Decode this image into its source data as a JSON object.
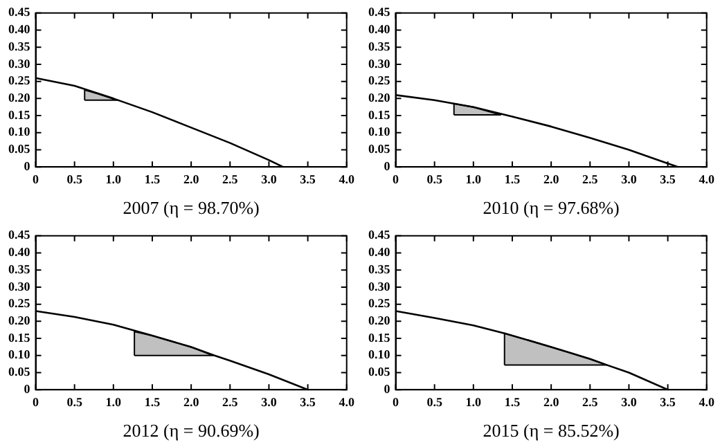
{
  "chart_data": [
    {
      "type": "line",
      "xlabel": "2007 (η = 98.70%)",
      "xlim": [
        0,
        4.0
      ],
      "ylim": [
        0,
        0.45
      ],
      "xticks": [
        0,
        0.5,
        {
          "value": 1,
          "label": "1.0"
        },
        1.5,
        {
          "value": 2,
          "label": "2.0"
        },
        2.5,
        {
          "value": 3,
          "label": "3.0"
        },
        3.5,
        {
          "value": 4,
          "label": "4.0"
        }
      ],
      "yticks": [
        0,
        0.05,
        {
          "value": 0.1,
          "label": "0.10"
        },
        0.15,
        {
          "value": 0.2,
          "label": "0.20"
        },
        0.25,
        {
          "value": 0.3,
          "label": "0.30"
        },
        0.35,
        {
          "value": 0.4,
          "label": "0.40"
        },
        0.45
      ],
      "grid": false,
      "legend": false,
      "series": [
        {
          "type": "line",
          "color": "#000000",
          "x": [
            0,
            0.5,
            1.0,
            1.5,
            2.0,
            2.5,
            3.0,
            3.18
          ],
          "values": [
            0.26,
            0.237,
            0.2,
            0.16,
            0.115,
            0.07,
            0.02,
            0
          ]
        },
        {
          "type": "area",
          "color": "#c0c0c0",
          "x": [
            0.63,
            0.63,
            0.8,
            1.05,
            0.63
          ],
          "values": [
            0.195,
            0.225,
            0.214,
            0.195,
            0.195
          ]
        }
      ]
    },
    {
      "type": "line",
      "xlabel": "2010 (η = 97.68%)",
      "xlim": [
        0,
        4.0
      ],
      "ylim": [
        0,
        0.45
      ],
      "xticks": [
        0,
        0.5,
        {
          "value": 1,
          "label": "1.0"
        },
        1.5,
        {
          "value": 2,
          "label": "2.0"
        },
        2.5,
        {
          "value": 3,
          "label": "3.0"
        },
        3.5,
        {
          "value": 4,
          "label": "4.0"
        }
      ],
      "yticks": [
        0,
        0.05,
        {
          "value": 0.1,
          "label": "0.10"
        },
        0.15,
        {
          "value": 0.2,
          "label": "0.20"
        },
        0.25,
        {
          "value": 0.3,
          "label": "0.30"
        },
        0.35,
        {
          "value": 0.4,
          "label": "0.40"
        },
        0.45
      ],
      "grid": false,
      "legend": false,
      "series": [
        {
          "type": "line",
          "color": "#000000",
          "x": [
            0,
            0.5,
            1.0,
            1.5,
            2.0,
            2.5,
            3.0,
            3.5,
            3.63
          ],
          "values": [
            0.21,
            0.195,
            0.175,
            0.147,
            0.118,
            0.085,
            0.05,
            0.01,
            0
          ]
        },
        {
          "type": "area",
          "color": "#c0c0c0",
          "x": [
            0.75,
            0.75,
            1.0,
            1.35,
            0.75
          ],
          "values": [
            0.152,
            0.185,
            0.175,
            0.152,
            0.152
          ]
        }
      ]
    },
    {
      "type": "line",
      "xlabel": "2012 (η = 90.69%)",
      "xlim": [
        0,
        4.0
      ],
      "ylim": [
        0,
        0.45
      ],
      "xticks": [
        0,
        0.5,
        {
          "value": 1,
          "label": "1.0"
        },
        1.5,
        {
          "value": 2,
          "label": "2.0"
        },
        2.5,
        {
          "value": 3,
          "label": "3.0"
        },
        3.5,
        {
          "value": 4,
          "label": "4.0"
        }
      ],
      "yticks": [
        0,
        0.05,
        {
          "value": 0.1,
          "label": "0.10"
        },
        0.15,
        {
          "value": 0.2,
          "label": "0.20"
        },
        0.25,
        {
          "value": 0.3,
          "label": "0.30"
        },
        0.35,
        {
          "value": 0.4,
          "label": "0.40"
        },
        0.45
      ],
      "grid": false,
      "legend": false,
      "series": [
        {
          "type": "line",
          "color": "#000000",
          "x": [
            0,
            0.5,
            1.0,
            1.5,
            2.0,
            2.3,
            2.5,
            3.0,
            3.5
          ],
          "values": [
            0.23,
            0.213,
            0.19,
            0.158,
            0.125,
            0.1,
            0.085,
            0.045,
            0
          ]
        },
        {
          "type": "area",
          "color": "#c0c0c0",
          "x": [
            1.27,
            1.27,
            1.5,
            2.0,
            2.28,
            1.27
          ],
          "values": [
            0.1,
            0.17,
            0.158,
            0.125,
            0.1,
            0.1
          ]
        }
      ]
    },
    {
      "type": "line",
      "xlabel": "2015 (η = 85.52%)",
      "xlim": [
        0,
        4.0
      ],
      "ylim": [
        0,
        0.45
      ],
      "xticks": [
        0,
        0.5,
        {
          "value": 1,
          "label": "1.0"
        },
        1.5,
        {
          "value": 2,
          "label": "2.0"
        },
        2.5,
        {
          "value": 3,
          "label": "3.0"
        },
        3.5,
        {
          "value": 4,
          "label": "4.0"
        }
      ],
      "yticks": [
        0,
        0.05,
        {
          "value": 0.1,
          "label": "0.10"
        },
        0.15,
        {
          "value": 0.2,
          "label": "0.20"
        },
        0.25,
        {
          "value": 0.3,
          "label": "0.30"
        },
        0.35,
        {
          "value": 0.4,
          "label": "0.40"
        },
        0.45
      ],
      "grid": false,
      "legend": false,
      "series": [
        {
          "type": "line",
          "color": "#000000",
          "x": [
            0,
            0.5,
            1.0,
            1.4,
            2.0,
            2.5,
            2.72,
            3.0,
            3.5
          ],
          "values": [
            0.23,
            0.21,
            0.188,
            0.165,
            0.125,
            0.09,
            0.072,
            0.05,
            0
          ]
        },
        {
          "type": "area",
          "color": "#c0c0c0",
          "x": [
            1.4,
            1.4,
            2.0,
            2.5,
            2.72,
            1.4
          ],
          "values": [
            0.072,
            0.165,
            0.125,
            0.09,
            0.072,
            0.072
          ]
        }
      ]
    }
  ]
}
